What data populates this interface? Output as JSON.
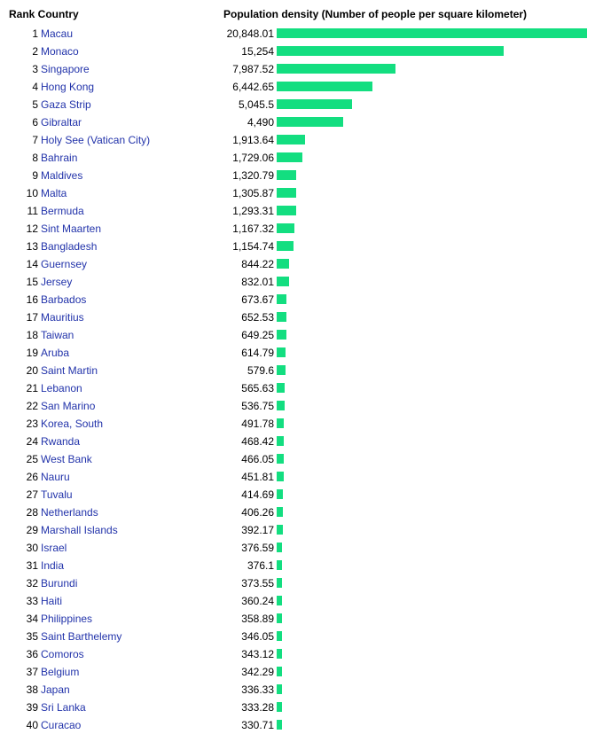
{
  "header": {
    "rank_country": "Rank Country",
    "value": "Population density (Number of people per square kilometer)"
  },
  "colors": {
    "bar": "#13de80",
    "link": "#2233aa"
  },
  "chart_data": {
    "type": "bar",
    "orientation": "horizontal",
    "title": "",
    "xlabel": "Population density (Number of people per square kilometer)",
    "ylabel": "",
    "xlim": [
      0,
      20848.01
    ],
    "grid": false,
    "legend": "none",
    "rows": [
      {
        "rank": "1",
        "country": "Macau",
        "value": 20848.01,
        "label": "20,848.01"
      },
      {
        "rank": "2",
        "country": "Monaco",
        "value": 15254,
        "label": "15,254"
      },
      {
        "rank": "3",
        "country": "Singapore",
        "value": 7987.52,
        "label": "7,987.52"
      },
      {
        "rank": "4",
        "country": "Hong Kong",
        "value": 6442.65,
        "label": "6,442.65"
      },
      {
        "rank": "5",
        "country": "Gaza Strip",
        "value": 5045.5,
        "label": "5,045.5"
      },
      {
        "rank": "6",
        "country": "Gibraltar",
        "value": 4490,
        "label": "4,490"
      },
      {
        "rank": "7",
        "country": "Holy See (Vatican City)",
        "value": 1913.64,
        "label": "1,913.64"
      },
      {
        "rank": "8",
        "country": "Bahrain",
        "value": 1729.06,
        "label": "1,729.06"
      },
      {
        "rank": "9",
        "country": "Maldives",
        "value": 1320.79,
        "label": "1,320.79"
      },
      {
        "rank": "10",
        "country": "Malta",
        "value": 1305.87,
        "label": "1,305.87"
      },
      {
        "rank": "11",
        "country": "Bermuda",
        "value": 1293.31,
        "label": "1,293.31"
      },
      {
        "rank": "12",
        "country": "Sint Maarten",
        "value": 1167.32,
        "label": "1,167.32"
      },
      {
        "rank": "13",
        "country": "Bangladesh",
        "value": 1154.74,
        "label": "1,154.74"
      },
      {
        "rank": "14",
        "country": "Guernsey",
        "value": 844.22,
        "label": "844.22"
      },
      {
        "rank": "15",
        "country": "Jersey",
        "value": 832.01,
        "label": "832.01"
      },
      {
        "rank": "16",
        "country": "Barbados",
        "value": 673.67,
        "label": "673.67"
      },
      {
        "rank": "17",
        "country": "Mauritius",
        "value": 652.53,
        "label": "652.53"
      },
      {
        "rank": "18",
        "country": "Taiwan",
        "value": 649.25,
        "label": "649.25"
      },
      {
        "rank": "19",
        "country": "Aruba",
        "value": 614.79,
        "label": "614.79"
      },
      {
        "rank": "20",
        "country": "Saint Martin",
        "value": 579.6,
        "label": "579.6"
      },
      {
        "rank": "21",
        "country": "Lebanon",
        "value": 565.63,
        "label": "565.63"
      },
      {
        "rank": "22",
        "country": "San Marino",
        "value": 536.75,
        "label": "536.75"
      },
      {
        "rank": "23",
        "country": "Korea, South",
        "value": 491.78,
        "label": "491.78"
      },
      {
        "rank": "24",
        "country": "Rwanda",
        "value": 468.42,
        "label": "468.42"
      },
      {
        "rank": "25",
        "country": "West Bank",
        "value": 466.05,
        "label": "466.05"
      },
      {
        "rank": "26",
        "country": "Nauru",
        "value": 451.81,
        "label": "451.81"
      },
      {
        "rank": "27",
        "country": "Tuvalu",
        "value": 414.69,
        "label": "414.69"
      },
      {
        "rank": "28",
        "country": "Netherlands",
        "value": 406.26,
        "label": "406.26"
      },
      {
        "rank": "29",
        "country": "Marshall Islands",
        "value": 392.17,
        "label": "392.17"
      },
      {
        "rank": "30",
        "country": "Israel",
        "value": 376.59,
        "label": "376.59"
      },
      {
        "rank": "31",
        "country": "India",
        "value": 376.1,
        "label": "376.1"
      },
      {
        "rank": "32",
        "country": "Burundi",
        "value": 373.55,
        "label": "373.55"
      },
      {
        "rank": "33",
        "country": "Haiti",
        "value": 360.24,
        "label": "360.24"
      },
      {
        "rank": "34",
        "country": "Philippines",
        "value": 358.89,
        "label": "358.89"
      },
      {
        "rank": "35",
        "country": "Saint Barthelemy",
        "value": 346.05,
        "label": "346.05"
      },
      {
        "rank": "36",
        "country": "Comoros",
        "value": 343.12,
        "label": "343.12"
      },
      {
        "rank": "37",
        "country": "Belgium",
        "value": 342.29,
        "label": "342.29"
      },
      {
        "rank": "38",
        "country": "Japan",
        "value": 336.33,
        "label": "336.33"
      },
      {
        "rank": "39",
        "country": "Sri Lanka",
        "value": 333.28,
        "label": "333.28"
      },
      {
        "rank": "40",
        "country": "Curacao",
        "value": 330.71,
        "label": "330.71"
      }
    ]
  }
}
